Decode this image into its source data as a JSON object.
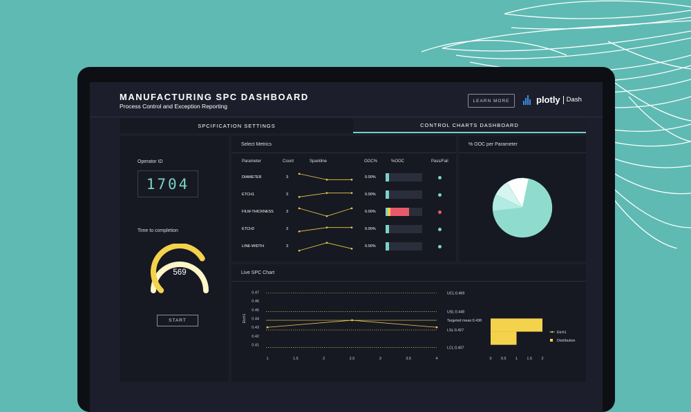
{
  "header": {
    "title": "MANUFACTURING SPC DASHBOARD",
    "subtitle": "Process Control and Exception Reporting",
    "learn_more": "LEARN MORE",
    "logo_word": "plotly",
    "logo_dash": "Dash"
  },
  "tabs": [
    "SPCIFICATION SETTINGS",
    "CONTROL CHARTS DASHBOARD"
  ],
  "left_panel": {
    "operator_label": "Operator ID",
    "operator_id": "1704",
    "time_label": "Time to completion",
    "time_value": "569",
    "gauge_fraction": 0.72,
    "start_button": "START"
  },
  "metrics": {
    "title": "Select Metrics",
    "columns": [
      "Parameter",
      "Count",
      "Sparkline",
      "OOC%",
      "%OOC",
      "Pass/Fail"
    ],
    "rows": [
      {
        "name": "DIAMETER",
        "count": "3",
        "ooc": "0.00%",
        "spark": [
          0.46,
          0.43,
          0.43
        ],
        "bar_fraction": 0.1,
        "bar_colors": [
          "#79d3c8"
        ],
        "status_color": "#79d3c8"
      },
      {
        "name": "ETCH1",
        "count": "3",
        "ooc": "0.00%",
        "spark": [
          0.43,
          0.45,
          0.45
        ],
        "bar_fraction": 0.1,
        "bar_colors": [
          "#79d3c8"
        ],
        "status_color": "#79d3c8"
      },
      {
        "name": "FILM-THICKNESS",
        "count": "3",
        "ooc": "0.00%",
        "spark": [
          0.46,
          0.42,
          0.46
        ],
        "bar_fraction": 0.64,
        "bar_colors": [
          "#79d3c8",
          "#f2c94c",
          "#e85a6a"
        ],
        "status_color": "#e85a6a"
      },
      {
        "name": "ETCH2",
        "count": "3",
        "ooc": "0.00%",
        "spark": [
          0.43,
          0.45,
          0.45
        ],
        "bar_fraction": 0.1,
        "bar_colors": [
          "#79d3c8"
        ],
        "status_color": "#79d3c8"
      },
      {
        "name": "LINE-WIDTH",
        "count": "3",
        "ooc": "0.00%",
        "spark": [
          0.42,
          0.46,
          0.43
        ],
        "bar_fraction": 0.1,
        "bar_colors": [
          "#79d3c8"
        ],
        "status_color": "#79d3c8"
      }
    ]
  },
  "pie_panel": {
    "title": "% OOC per Parameter",
    "slices": [
      {
        "value": 0.7,
        "color": "#8fdccf"
      },
      {
        "value": 0.09,
        "color": "#b2ebe2"
      },
      {
        "value": 0.09,
        "color": "#d7f5f0"
      },
      {
        "value": 0.12,
        "color": "#ffffff"
      }
    ]
  },
  "spc_panel": {
    "title": "Live SPC Chart"
  },
  "chart_data": [
    {
      "type": "line",
      "ylabel": "Etch1",
      "x": [
        1,
        2.5,
        4
      ],
      "y": [
        0.43,
        0.438,
        0.43
      ],
      "xticks": [
        "1",
        "1.5",
        "2",
        "2.5",
        "3",
        "3.5",
        "4"
      ],
      "yticks": [
        "0.47",
        "0.46",
        "0.45",
        "0.44",
        "0.43",
        "0.42",
        "0.41"
      ],
      "xlim": [
        1,
        4
      ],
      "ylim": [
        0.405,
        0.475
      ],
      "control_lines": [
        {
          "label": "UCL:0.469",
          "value": 0.469
        },
        {
          "label": "USL:0.448",
          "value": 0.448
        },
        {
          "label": "Targeted mean:0.438",
          "value": 0.438
        },
        {
          "label": "LSL:0.427",
          "value": 0.427
        },
        {
          "label": "LCL:0.407",
          "value": 0.407
        }
      ]
    },
    {
      "type": "bar",
      "orientation": "horizontal",
      "bins": [
        0.41,
        0.44
      ],
      "values": [
        1,
        2
      ],
      "xticks": [
        "0",
        "0.5",
        "1",
        "1.5",
        "2"
      ],
      "xlim": [
        0,
        2
      ],
      "legend": [
        "Etch1",
        "Distribution"
      ],
      "legend_position": "right"
    }
  ],
  "colors": {
    "accent": "#79d3c8",
    "line": "#f2c94c",
    "fail": "#e85a6a",
    "background": "#1c1f2b",
    "panel": "#161922"
  }
}
